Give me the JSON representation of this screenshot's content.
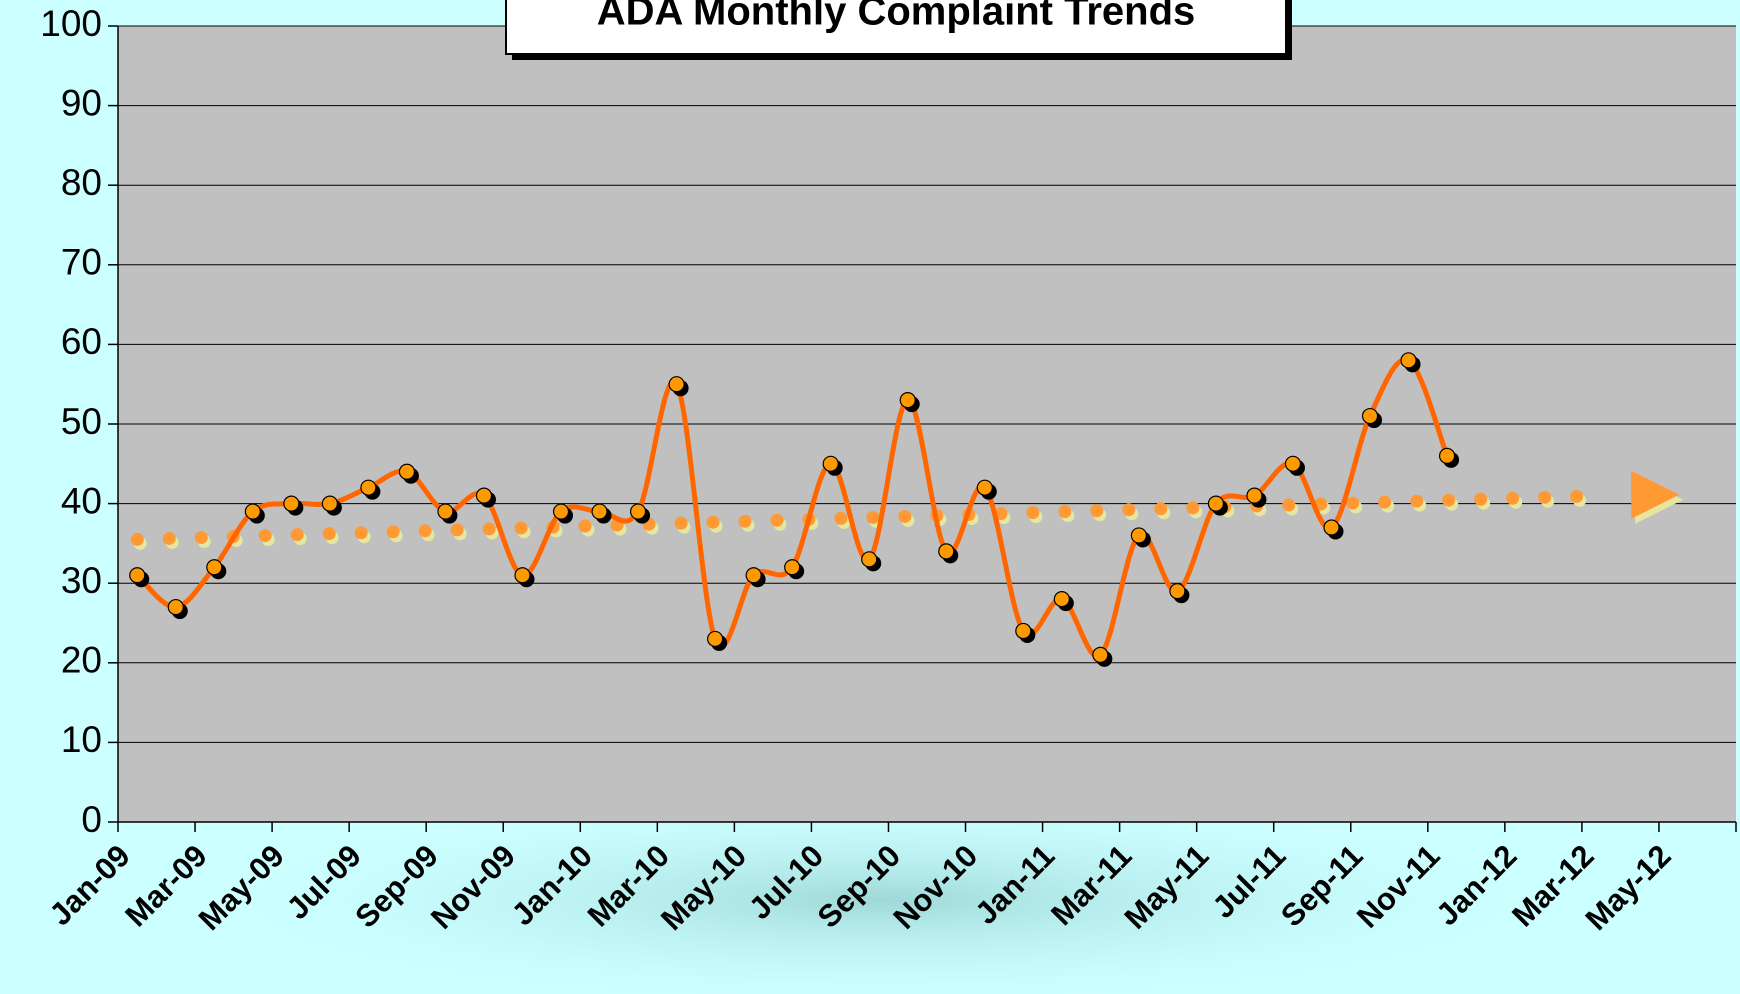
{
  "chart_data": {
    "type": "line",
    "title": "ADA Monthly Complaint Trends",
    "categories": [
      "Jan-09",
      null,
      "Mar-09",
      null,
      "May-09",
      null,
      "Jul-09",
      null,
      "Sep-09",
      null,
      "Nov-09",
      null,
      "Jan-10",
      null,
      "Mar-10",
      null,
      "May-10",
      null,
      "Jul-10",
      null,
      "Sep-10",
      null,
      "Nov-10",
      null,
      "Jan-11",
      null,
      "Mar-11",
      null,
      "May-11",
      null,
      "Jul-11",
      null,
      "Sep-11",
      null,
      "Nov-11",
      null,
      "Jan-12",
      null,
      "Mar-12",
      null,
      "May-12",
      null
    ],
    "series": [
      {
        "color": "#ff6600",
        "marker_color": "#ff9900",
        "values": [
          31,
          27,
          32,
          39,
          40,
          40,
          42,
          44,
          39,
          41,
          31,
          39,
          39,
          39,
          55,
          23,
          31,
          32,
          45,
          33,
          53,
          34,
          42,
          24,
          28,
          21,
          36,
          29,
          40,
          41,
          45,
          37,
          51,
          58,
          46,
          null,
          null,
          null,
          null,
          null,
          null,
          null
        ]
      }
    ],
    "trendline": {
      "from": "Jan-09",
      "to": "Mar-12",
      "values": [
        35.5,
        41
      ],
      "color": "#ff9933"
    },
    "ylim": [
      0,
      100
    ],
    "yticks": [
      0,
      10,
      20,
      30,
      40,
      50,
      60,
      70,
      80,
      90,
      100
    ],
    "grid": true
  }
}
